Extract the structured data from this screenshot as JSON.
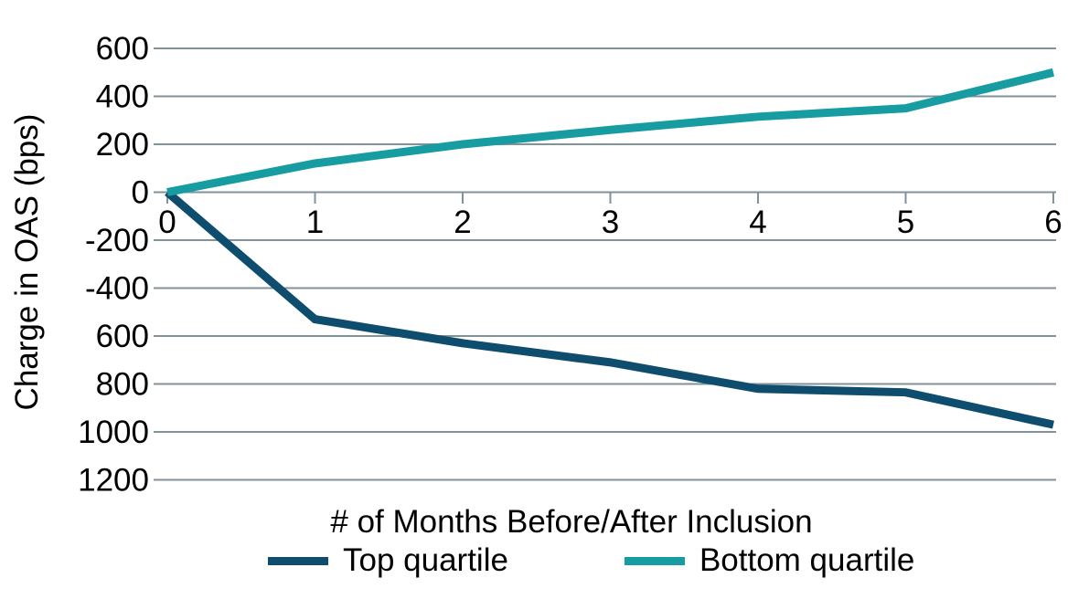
{
  "chart_data": {
    "type": "line",
    "title": "",
    "xlabel": "# of Months Before/After Inclusion",
    "ylabel": "Charge in OAS (bps)",
    "x": [
      0,
      1,
      2,
      3,
      4,
      5,
      6
    ],
    "xtick_labels": [
      "0",
      "1",
      "2",
      "3",
      "4",
      "5",
      "6"
    ],
    "ytick_labels": [
      "600",
      "400",
      "200",
      "0",
      "-200",
      "-400",
      "600",
      "800",
      "1000",
      "1200"
    ],
    "ylim": [
      -1200,
      600
    ],
    "ytick_step": 200,
    "grid": true,
    "legend_position": "bottom",
    "series": [
      {
        "name": "Top quartile",
        "color": "#0e4d6e",
        "values": [
          0,
          -530,
          -630,
          -710,
          -820,
          -835,
          -970
        ]
      },
      {
        "name": "Bottom quartile",
        "color": "#169ca1",
        "values": [
          0,
          120,
          200,
          260,
          315,
          350,
          500
        ]
      }
    ],
    "styles": {
      "gridline_color": "#81929b",
      "text_color": "#000000",
      "background": "#ffffff",
      "line_width": 9
    }
  }
}
